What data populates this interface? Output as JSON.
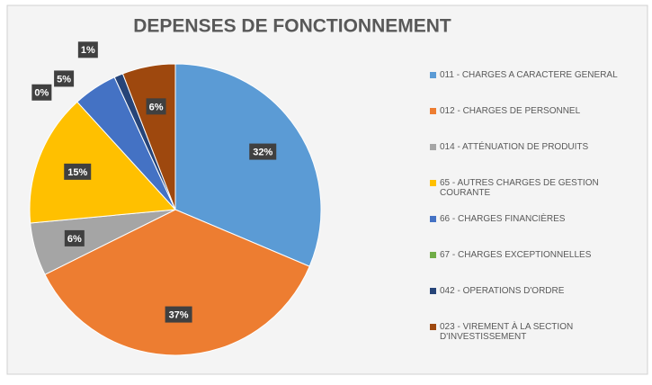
{
  "chart_data": {
    "type": "pie",
    "title": "DEPENSES DE FONCTIONNEMENT",
    "categories": [
      "011 - CHARGES A CARACTERE GENERAL",
      "012 - CHARGES DE PERSONNEL",
      "014 - ATTÉNUATION DE PRODUITS",
      "65 - AUTRES CHARGES DE GESTION COURANTE",
      "66 - CHARGES FINANCIÈRES",
      "67 - CHARGES EXCEPTIONNELLES",
      "042 - OPERATIONS D'ORDRE",
      "023 - VIREMENT À LA SECTION D'INVESTISSEMENT"
    ],
    "values": [
      32,
      37,
      6,
      15,
      5,
      0,
      1,
      6
    ],
    "value_labels": [
      "32%",
      "37%",
      "6%",
      "15%",
      "5%",
      "0%",
      "1%",
      "6%"
    ],
    "colors": [
      "#5b9bd5",
      "#ed7d31",
      "#a5a5a5",
      "#ffc000",
      "#4472c4",
      "#70ad47",
      "#264478",
      "#9e480e"
    ],
    "legend": "right"
  }
}
